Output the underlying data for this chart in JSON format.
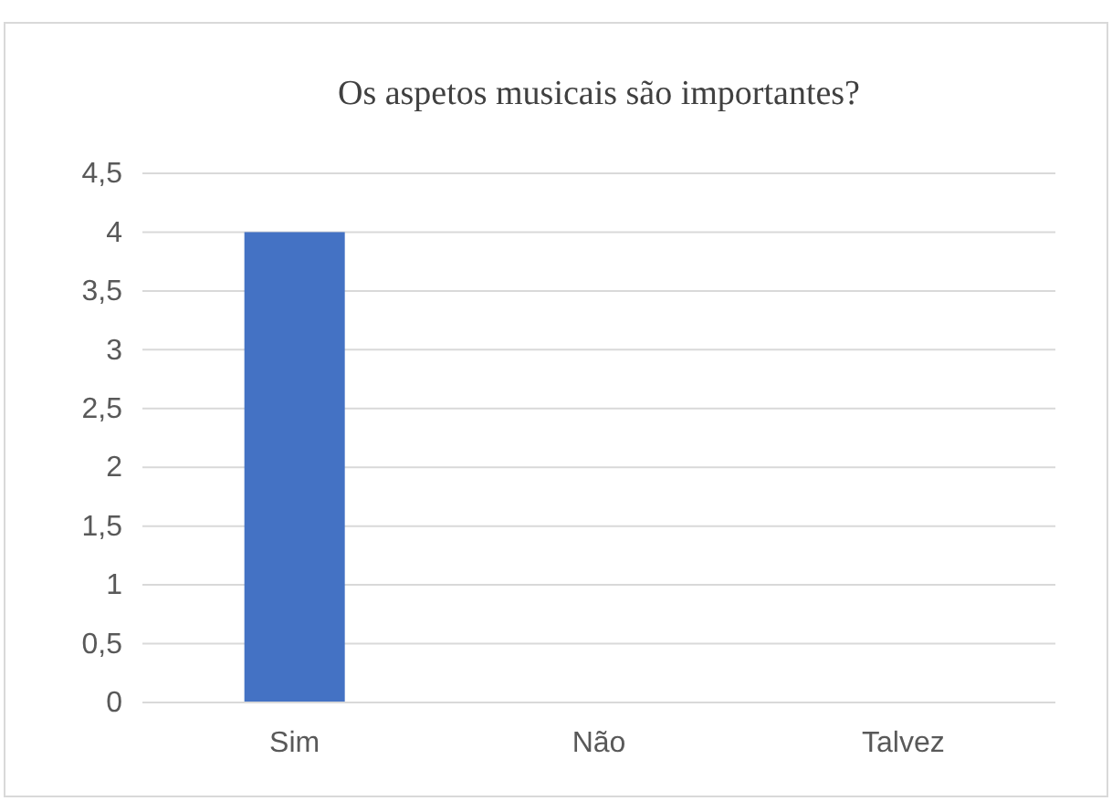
{
  "chart_data": {
    "type": "bar",
    "title": "Os aspetos musicais são importantes?",
    "categories": [
      "Sim",
      "Não",
      "Talvez"
    ],
    "values": [
      4,
      0,
      0
    ],
    "color": "#4472c4",
    "ylim": [
      0,
      4.5
    ],
    "yticks": [
      0,
      {
        "value": 0.5,
        "label": "0,5"
      },
      1,
      {
        "value": 1.5,
        "label": "1,5"
      },
      2,
      {
        "value": 2.5,
        "label": "2,5"
      },
      3,
      {
        "value": 3.5,
        "label": "3,5"
      },
      4,
      {
        "value": 4.5,
        "label": "4,5"
      }
    ],
    "grid": "y"
  }
}
